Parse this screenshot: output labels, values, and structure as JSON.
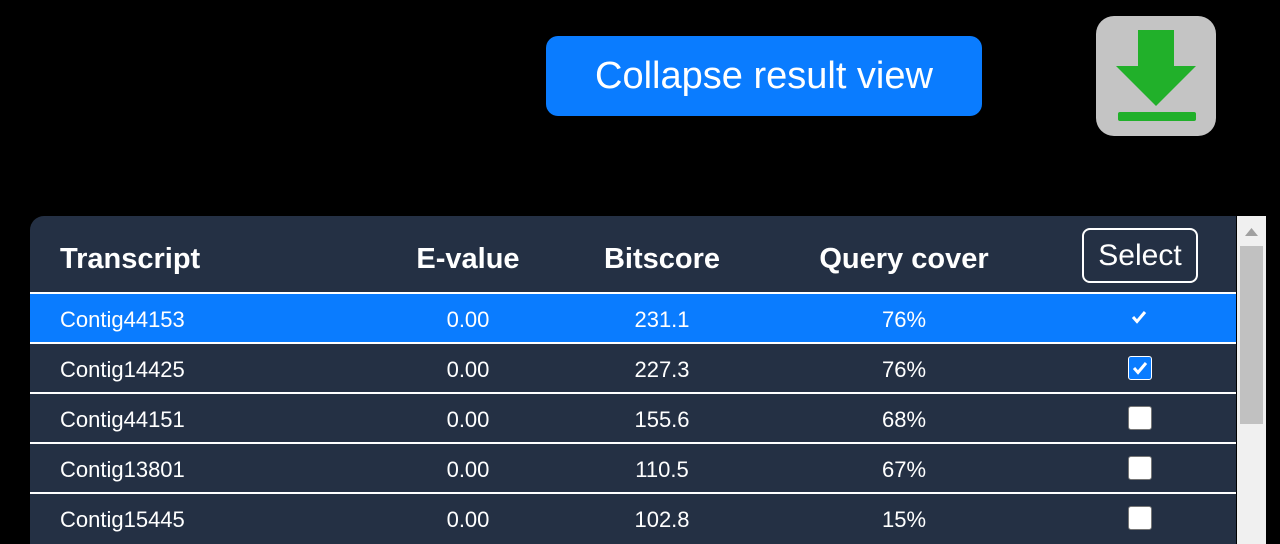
{
  "toolbar": {
    "collapse_button": "Collapse result view"
  },
  "table": {
    "headers": [
      "Transcript",
      "E-value",
      "Bitscore",
      "Query cover"
    ],
    "select_button": "Select",
    "rows": [
      {
        "cells": [
          "Contig44153",
          "0.00",
          "231.1",
          "76%"
        ],
        "checked": true,
        "selected": true
      },
      {
        "cells": [
          "Contig14425",
          "0.00",
          "227.3",
          "76%"
        ],
        "checked": true,
        "selected": false
      },
      {
        "cells": [
          "Contig44151",
          "0.00",
          "155.6",
          "68%"
        ],
        "checked": false,
        "selected": false
      },
      {
        "cells": [
          "Contig13801",
          "0.00",
          "110.5",
          "67%"
        ],
        "checked": false,
        "selected": false
      },
      {
        "cells": [
          "Contig15445",
          "0.00",
          "102.8",
          "15%"
        ],
        "checked": false,
        "selected": false
      }
    ]
  }
}
